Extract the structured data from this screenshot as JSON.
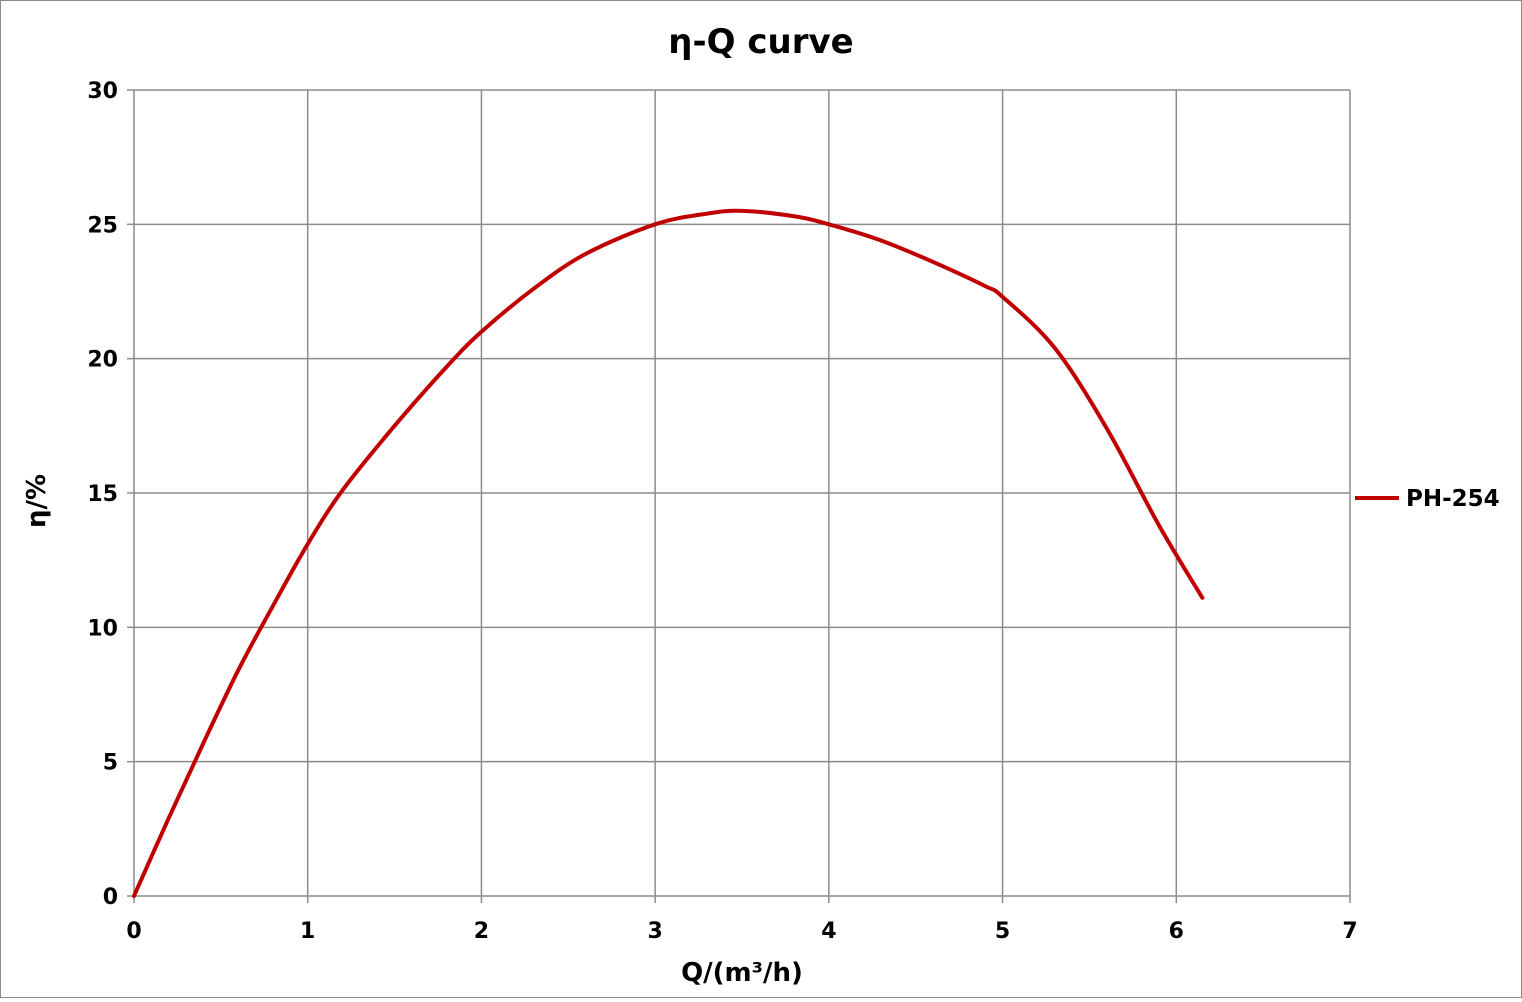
{
  "chart_data": {
    "type": "line",
    "title": "η-Q  curve",
    "xlabel": "Q/(m³/h)",
    "ylabel": "η/%",
    "xlim": [
      0,
      7
    ],
    "ylim": [
      0,
      30
    ],
    "x_ticks": [
      "0",
      "1",
      "2",
      "3",
      "4",
      "5",
      "6",
      "7"
    ],
    "y_ticks": [
      "0",
      "5",
      "10",
      "15",
      "20",
      "25",
      "30"
    ],
    "grid": true,
    "legend_position": "right",
    "series": [
      {
        "name": "PH-254",
        "color": "#c00000",
        "x": [
          0,
          0.2,
          0.4,
          0.6,
          0.8,
          1.0,
          1.2,
          1.5,
          1.8,
          2.0,
          2.3,
          2.6,
          3.0,
          3.3,
          3.5,
          3.8,
          4.0,
          4.3,
          4.6,
          4.9,
          5.0,
          5.3,
          5.6,
          5.9,
          6.15
        ],
        "y": [
          0,
          2.9,
          5.7,
          8.4,
          10.8,
          13.1,
          15.1,
          17.5,
          19.7,
          21.0,
          22.6,
          23.9,
          25.0,
          25.4,
          25.5,
          25.3,
          25.0,
          24.4,
          23.6,
          22.7,
          22.3,
          20.4,
          17.4,
          13.8,
          11.1
        ]
      }
    ]
  }
}
